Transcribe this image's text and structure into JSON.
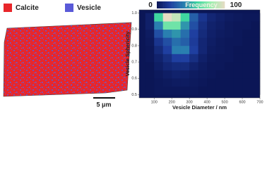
{
  "image_panel": {
    "legend": [
      {
        "name": "Calcite",
        "color": "#e8262a"
      },
      {
        "name": "Vesicle",
        "color": "#5a5ad8"
      }
    ],
    "scale_bar": "5 μm"
  },
  "chart_data": {
    "type": "heatmap",
    "xlabel": "Vesicle Diameter / nm",
    "ylabel": "Vesicle Sphericity",
    "colorbar_label": "Frequency",
    "zlim": [
      0,
      100
    ],
    "colormap": [
      "#0b1656",
      "#1f3fa0",
      "#2a7fb0",
      "#3fd6a0",
      "#9ef0b0",
      "#e6dcc4"
    ],
    "x_edges": [
      50,
      100,
      150,
      200,
      250,
      300,
      350,
      400,
      450,
      500,
      550,
      600,
      650,
      700
    ],
    "y_edges": [
      0.5,
      0.55,
      0.6,
      0.65,
      0.7,
      0.75,
      0.8,
      0.85,
      0.9,
      0.95,
      1
    ],
    "z": [
      [
        0,
        1,
        1,
        1,
        1,
        1,
        0,
        0,
        0,
        0,
        0,
        0,
        0
      ],
      [
        0,
        1,
        2,
        3,
        3,
        2,
        1,
        0,
        0,
        0,
        0,
        0,
        0
      ],
      [
        0,
        2,
        4,
        6,
        5,
        3,
        2,
        1,
        0,
        0,
        0,
        0,
        0
      ],
      [
        0,
        4,
        8,
        10,
        10,
        6,
        3,
        1,
        1,
        0,
        0,
        0,
        0
      ],
      [
        1,
        6,
        12,
        20,
        20,
        12,
        5,
        2,
        1,
        1,
        0,
        0,
        0
      ],
      [
        1,
        10,
        20,
        40,
        40,
        20,
        8,
        3,
        2,
        1,
        0,
        0,
        0
      ],
      [
        2,
        15,
        25,
        35,
        30,
        18,
        8,
        4,
        2,
        1,
        1,
        0,
        0
      ],
      [
        3,
        25,
        40,
        45,
        35,
        20,
        10,
        5,
        3,
        2,
        1,
        0,
        0
      ],
      [
        5,
        40,
        70,
        70,
        45,
        25,
        12,
        6,
        4,
        2,
        1,
        1,
        0
      ],
      [
        5,
        60,
        100,
        90,
        60,
        30,
        15,
        8,
        5,
        3,
        2,
        1,
        1
      ]
    ],
    "xlim": [
      15,
      700
    ],
    "ylim": [
      0.48,
      1.02
    ],
    "xticks": [
      100,
      200,
      300,
      400,
      500,
      600,
      700
    ],
    "yticks": [
      0.5,
      0.6,
      0.7,
      0.8,
      0.9,
      {
        "value": 1,
        "label": "1.0"
      }
    ]
  }
}
